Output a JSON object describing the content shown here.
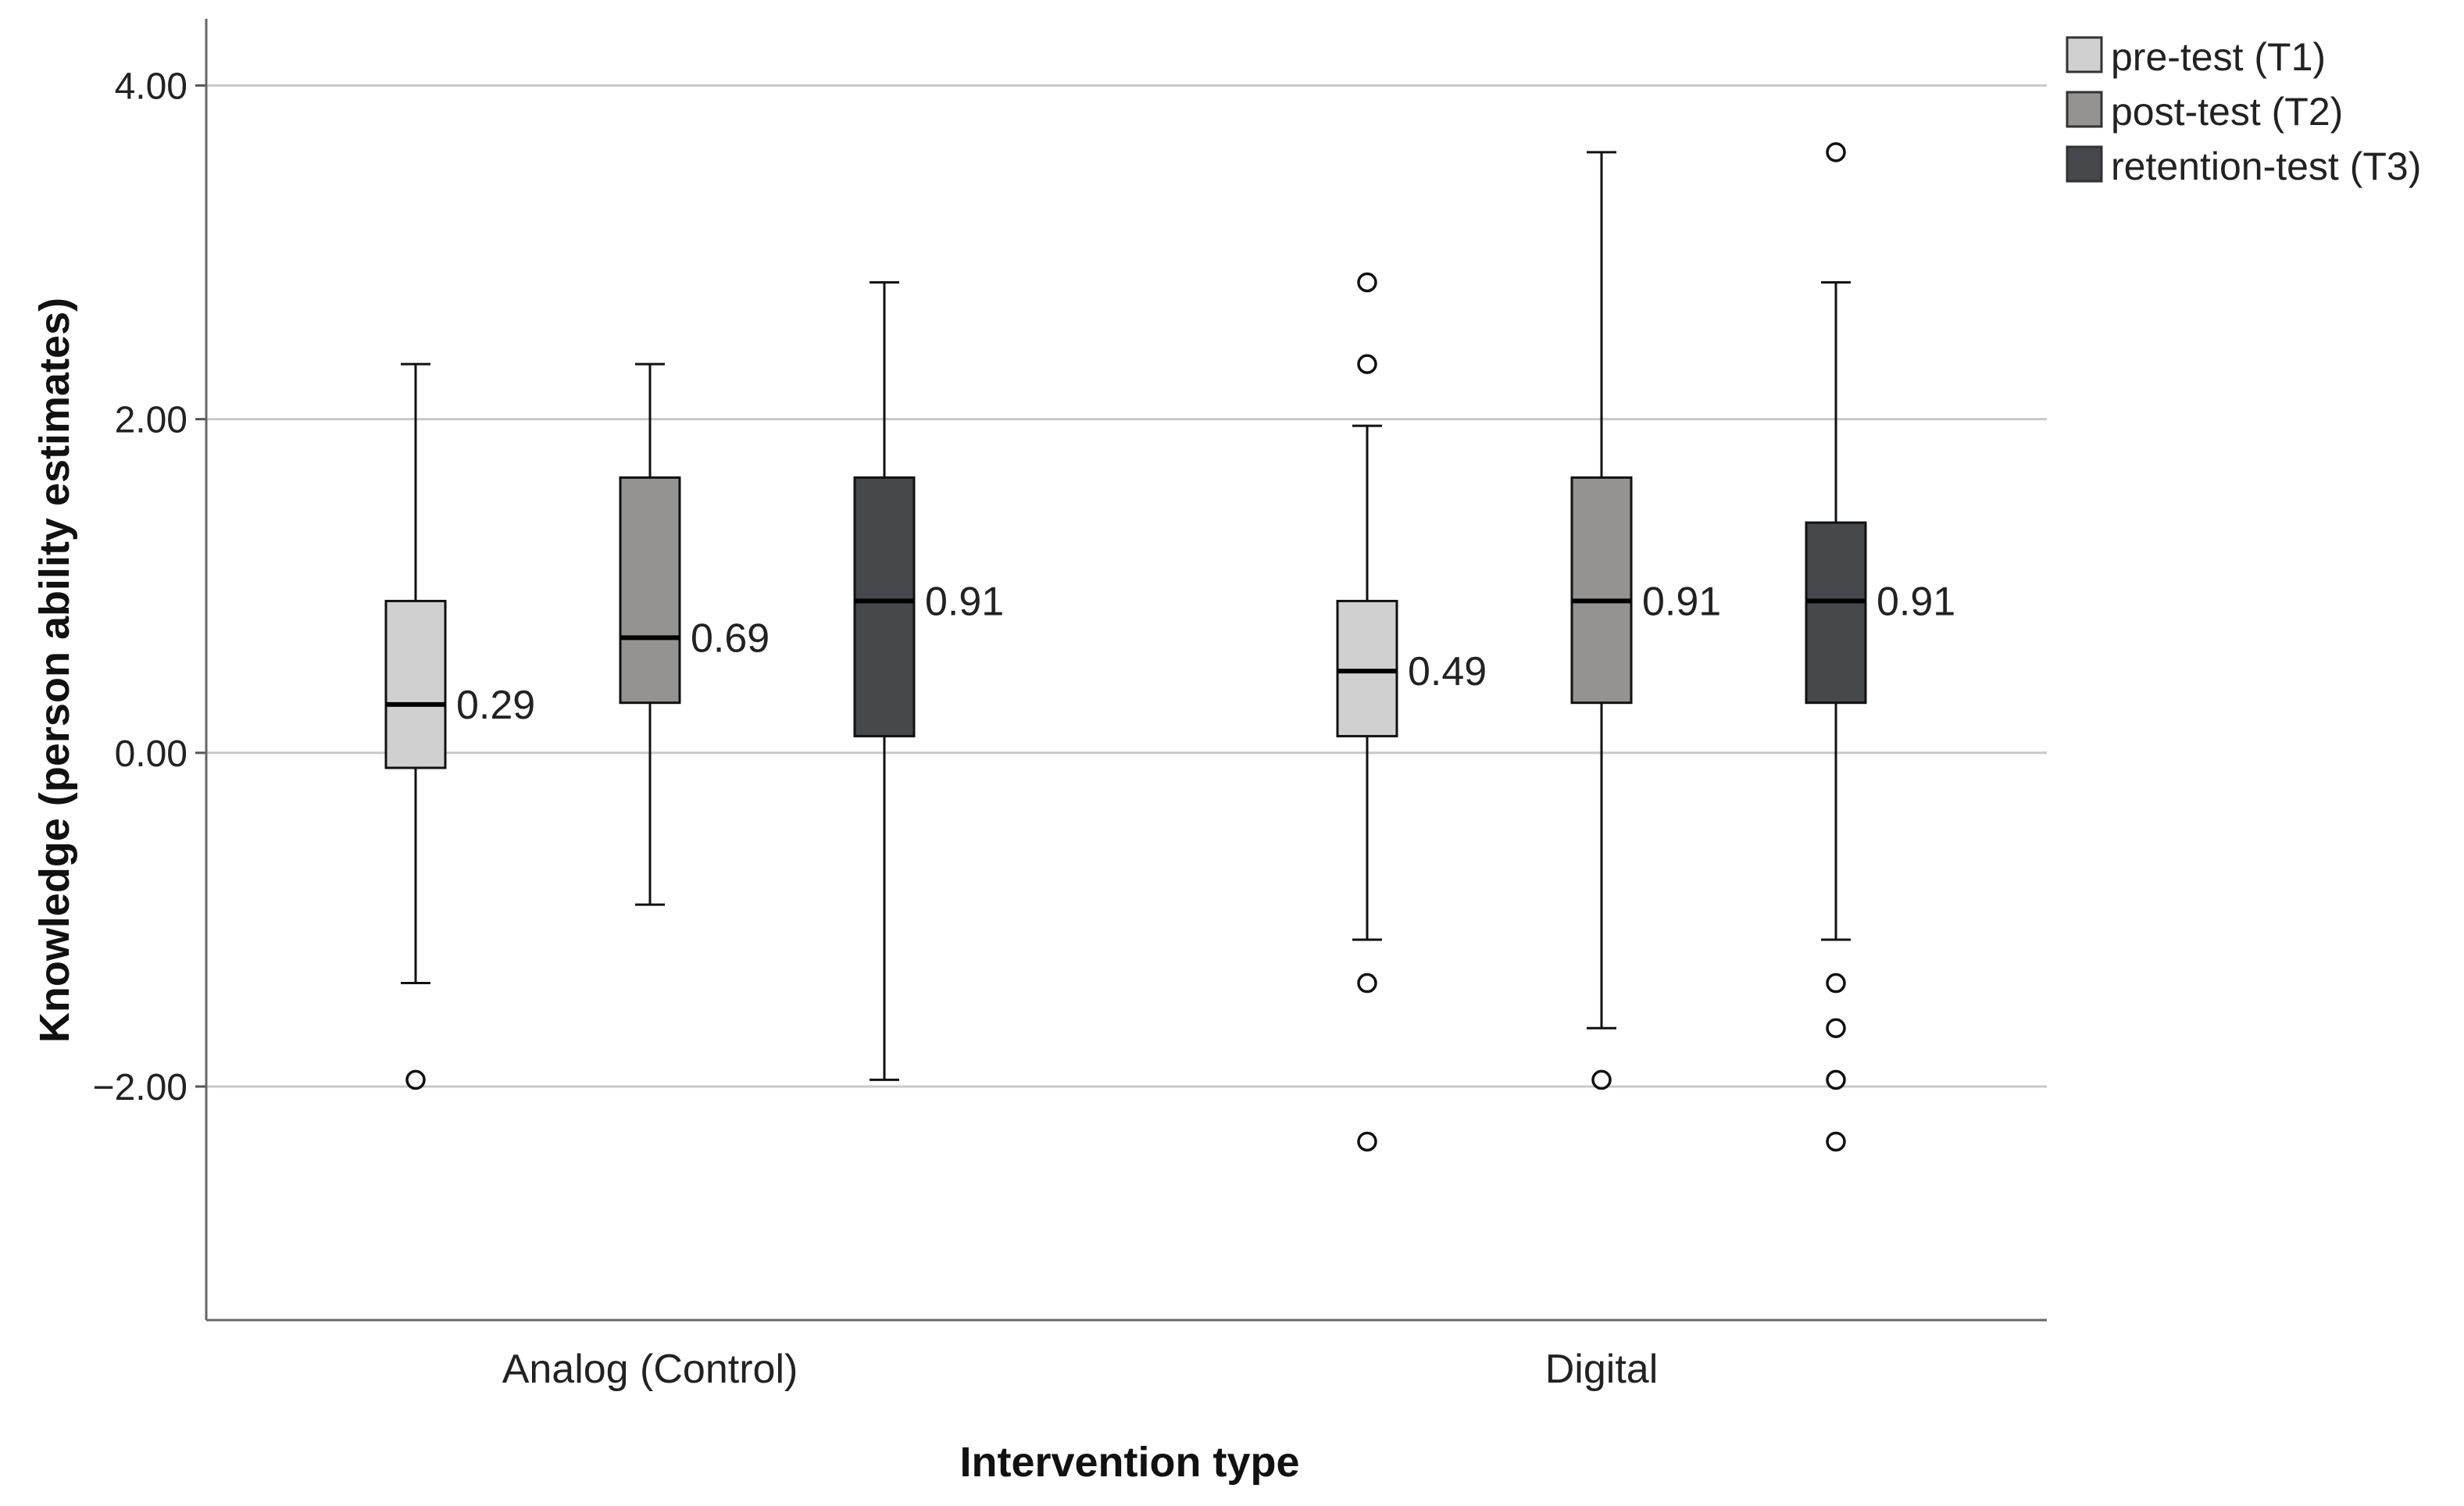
{
  "chart_data": {
    "type": "boxplot",
    "title": "",
    "xlabel": "Intervention type",
    "ylabel": "Knowledge (person ability estimates)",
    "ylim": [
      -3.4,
      4.4
    ],
    "yticks": [
      4.0,
      2.0,
      0.0,
      -2.0
    ],
    "ytick_labels": [
      "4.00",
      "2.00",
      "0.00",
      "−2.00"
    ],
    "grid": true,
    "legend_position": "top-right",
    "categories": [
      "Analog (Control)",
      "Digital"
    ],
    "series": [
      {
        "name": "pre-test (T1)",
        "color": "#d0d0d0",
        "boxes": [
          {
            "min": -1.38,
            "q1": -0.09,
            "median": 0.29,
            "q3": 0.91,
            "max": 2.33,
            "outliers": [
              -1.96
            ],
            "median_label": "0.29"
          },
          {
            "min": -1.12,
            "q1": 0.1,
            "median": 0.49,
            "q3": 0.91,
            "max": 1.96,
            "outliers": [
              2.82,
              2.33,
              -1.38,
              -2.33
            ],
            "median_label": "0.49"
          }
        ]
      },
      {
        "name": "post-test (T2)",
        "color": "#959292",
        "boxes": [
          {
            "min": -0.91,
            "q1": 0.3,
            "median": 0.69,
            "q3": 1.65,
            "max": 2.33,
            "outliers": [],
            "median_label": "0.69"
          },
          {
            "min": -1.65,
            "q1": 0.3,
            "median": 0.91,
            "q3": 1.65,
            "max": 3.6,
            "outliers": [
              -1.96
            ],
            "median_label": "0.91"
          }
        ]
      },
      {
        "name": "retention-test (T3)",
        "color": "#46484b",
        "boxes": [
          {
            "min": -1.96,
            "q1": 0.1,
            "median": 0.91,
            "q3": 1.65,
            "max": 2.82,
            "outliers": [],
            "median_label": "0.91"
          },
          {
            "min": -1.12,
            "q1": 0.3,
            "median": 0.91,
            "q3": 1.38,
            "max": 2.82,
            "outliers": [
              3.6,
              -1.38,
              -1.65,
              -1.96,
              -2.33
            ],
            "median_label": "0.91"
          }
        ]
      }
    ]
  }
}
